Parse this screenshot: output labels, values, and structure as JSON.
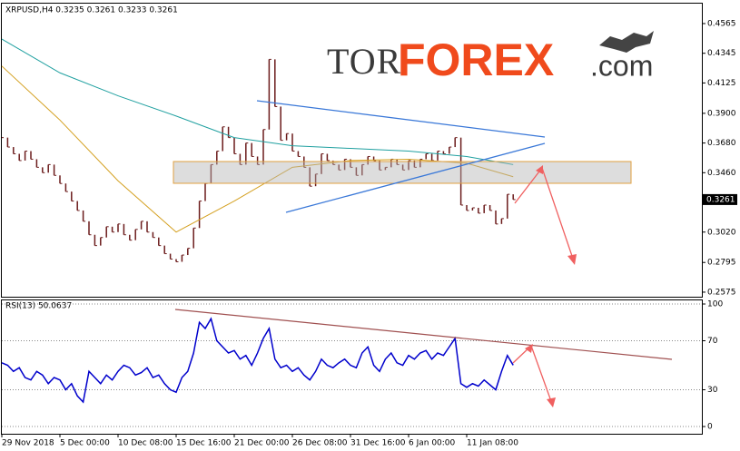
{
  "chart_data": [
    {
      "type": "ohlc",
      "title": "XRPUSD,H4  0.3235 0.3261 0.3233 0.3261",
      "logo": {
        "prefix": "TOR",
        "main": "FOREX",
        "suffix": ".com"
      },
      "color": "#6b1b1b",
      "values": [
        0.372,
        0.365,
        0.36,
        0.355,
        0.362,
        0.356,
        0.35,
        0.346,
        0.352,
        0.344,
        0.338,
        0.332,
        0.325,
        0.318,
        0.31,
        0.3,
        0.292,
        0.298,
        0.306,
        0.302,
        0.308,
        0.3,
        0.296,
        0.304,
        0.31,
        0.302,
        0.298,
        0.292,
        0.286,
        0.282,
        0.28,
        0.285,
        0.29,
        0.305,
        0.325,
        0.338,
        0.352,
        0.362,
        0.38,
        0.372,
        0.36,
        0.352,
        0.368,
        0.358,
        0.352,
        0.378,
        0.43,
        0.395,
        0.37,
        0.375,
        0.362,
        0.358,
        0.35,
        0.336,
        0.345,
        0.36,
        0.355,
        0.352,
        0.348,
        0.356,
        0.35,
        0.344,
        0.352,
        0.358,
        0.355,
        0.348,
        0.35,
        0.356,
        0.352,
        0.348,
        0.355,
        0.35,
        0.356,
        0.36,
        0.355,
        0.362,
        0.36,
        0.365,
        0.372,
        0.322,
        0.318,
        0.32,
        0.316,
        0.322,
        0.318,
        0.308,
        0.312,
        0.33,
        0.3261
      ],
      "series": [
        {
          "color": "#20a0a0",
          "x": [
            0,
            10,
            20,
            30,
            40,
            50,
            60,
            70,
            80,
            88
          ],
          "values": [
            0.445,
            0.42,
            0.403,
            0.388,
            0.372,
            0.366,
            0.364,
            0.362,
            0.358,
            0.352
          ]
        },
        {
          "color": "#d4a020",
          "x": [
            0,
            10,
            20,
            30,
            40,
            50,
            60,
            70,
            80,
            88
          ],
          "values": [
            0.425,
            0.385,
            0.34,
            0.302,
            0.325,
            0.35,
            0.355,
            0.356,
            0.353,
            0.343
          ]
        }
      ],
      "ylim": [
        0.2541,
        0.4706
      ],
      "yticks": [
        0.4565,
        0.4345,
        0.4125,
        {
          "value": 0.39,
          "label": "0.3900"
        },
        {
          "value": 0.368,
          "label": "0.3680"
        },
        {
          "value": 0.346,
          "label": "0.3460"
        },
        {
          "value": 0.302,
          "label": "0.3020"
        },
        0.2795,
        0.2575
      ],
      "xlim": [
        0,
        120
      ],
      "xticks": [
        {
          "value": 0,
          "label": "29 Nov 2018"
        },
        {
          "value": 10,
          "label": "5 Dec 00:00"
        },
        {
          "value": 20,
          "label": "10 Dec 08:00"
        },
        {
          "value": 30,
          "label": "15 Dec 16:00"
        },
        {
          "value": 40,
          "label": "21 Dec 00:00"
        },
        {
          "value": 50,
          "label": "26 Dec 08:00"
        },
        {
          "value": 60,
          "label": "31 Dec 16:00"
        },
        {
          "value": 70,
          "label": "6 Jan 00:00"
        },
        {
          "value": 80,
          "label": "11 Jan 08:00"
        }
      ]
    },
    {
      "type": "line",
      "title": "RSI(13) 50.0637",
      "color": "#0000cc",
      "values": [
        52,
        50,
        45,
        48,
        40,
        38,
        45,
        42,
        35,
        40,
        38,
        30,
        35,
        25,
        20,
        45,
        40,
        35,
        42,
        38,
        45,
        50,
        48,
        42,
        44,
        48,
        40,
        42,
        35,
        30,
        28,
        40,
        45,
        60,
        85,
        80,
        88,
        70,
        65,
        60,
        62,
        55,
        58,
        50,
        60,
        72,
        80,
        55,
        48,
        50,
        45,
        48,
        42,
        38,
        45,
        55,
        50,
        48,
        52,
        55,
        50,
        48,
        60,
        65,
        50,
        45,
        55,
        60,
        52,
        50,
        58,
        55,
        60,
        62,
        55,
        60,
        58,
        65,
        72,
        35,
        32,
        35,
        33,
        38,
        34,
        30,
        45,
        58,
        50.0637
      ],
      "ylim": [
        -5.9,
        103.7
      ],
      "yticks": [
        100,
        70,
        30,
        0
      ],
      "xlim": [
        0,
        120
      ],
      "grid": true
    }
  ]
}
